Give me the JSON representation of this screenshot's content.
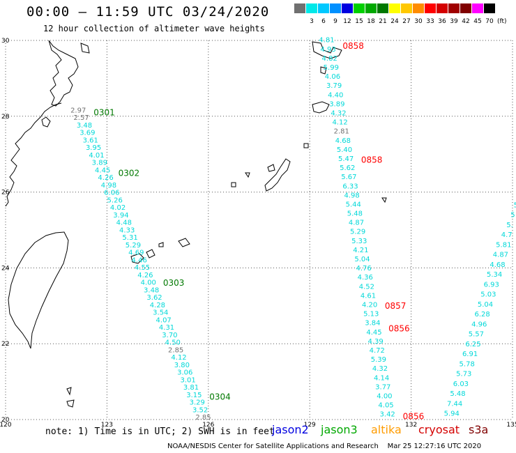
{
  "header": {
    "title": "00:00 – 11:59 UTC 03/24/2020",
    "subtitle": "12 hour collection of altimeter wave heights"
  },
  "legend": {
    "unit": "(ft)",
    "items": [
      {
        "label": "",
        "color": "#707070"
      },
      {
        "label": "3",
        "color": "#00e8e8"
      },
      {
        "label": "6",
        "color": "#00c8ff"
      },
      {
        "label": "9",
        "color": "#0090ff"
      },
      {
        "label": "12",
        "color": "#0000e0"
      },
      {
        "label": "15",
        "color": "#00d000"
      },
      {
        "label": "18",
        "color": "#00a800"
      },
      {
        "label": "21",
        "color": "#007800"
      },
      {
        "label": "24",
        "color": "#ffff00"
      },
      {
        "label": "27",
        "color": "#ffc800"
      },
      {
        "label": "30",
        "color": "#ff8c00"
      },
      {
        "label": "33",
        "color": "#ff0000"
      },
      {
        "label": "36",
        "color": "#d40000"
      },
      {
        "label": "39",
        "color": "#a00000"
      },
      {
        "label": "42",
        "color": "#800000"
      },
      {
        "label": "45",
        "color": "#ff00ff"
      },
      {
        "label": "70",
        "color": "#000000"
      }
    ]
  },
  "axes": {
    "lon_ticks": [
      "120",
      "123",
      "126",
      "129",
      "132",
      "135"
    ],
    "lat_ticks": [
      "30",
      "28",
      "26",
      "24",
      "22",
      "20"
    ],
    "lon_range": [
      120,
      135
    ],
    "lat_range": [
      20,
      30
    ]
  },
  "map_data": {
    "grid": "dotted every 3° lon / 2° lat",
    "tracks": [
      {
        "satellite": "jason3",
        "color": "#00d8d8",
        "times": [
          {
            "label": "0301",
            "lat": 28.1,
            "color": "#007800"
          },
          {
            "label": "0302",
            "lat": 26.5,
            "color": "#007800"
          },
          {
            "label": "0303",
            "lat": 23.6,
            "color": "#007800"
          },
          {
            "label": "0304",
            "lat": 20.6,
            "color": "#007800"
          }
        ],
        "start": {
          "lon": 122.15,
          "lat": 28.1
        },
        "end": {
          "lon": 125.85,
          "lat": 20.0
        },
        "values": [
          "2.97",
          "2.57",
          "3.48",
          "3.69",
          "3.61",
          "3.95",
          "4.01",
          "3.89",
          "4.45",
          "4.26",
          "4.98",
          "6.06",
          "5.26",
          "4.02",
          "3.94",
          "4.48",
          "4.33",
          "5.31",
          "5.29",
          "4.69",
          "4.46",
          "4.55",
          "4.26",
          "4.00",
          "3.48",
          "3.62",
          "4.28",
          "3.54",
          "4.07",
          "4.31",
          "3.70",
          "4.50",
          "2.85",
          "4.12",
          "3.80",
          "3.06",
          "3.01",
          "3.81",
          "3.15",
          "3.29",
          "3.52",
          "2.85"
        ],
        "value_colors": {
          "2.97": "#707070",
          "2.57": "#707070",
          "2.85": "#707070"
        }
      },
      {
        "satellite": "s3a",
        "color": "#00d8d8",
        "times": [
          {
            "label": "0858",
            "lat": 29.85,
            "color": "#ff0000"
          },
          {
            "label": "0858",
            "lat": 26.85,
            "color": "#ff0000"
          },
          {
            "label": "0857",
            "lat": 23.0,
            "color": "#ff0000"
          },
          {
            "label": "0856",
            "lat": 22.4,
            "color": "#ff0000"
          },
          {
            "label": "0856",
            "lat": 20.08,
            "color": "#ff0000"
          }
        ],
        "start": {
          "lon": 129.5,
          "lat": 29.95
        },
        "end": {
          "lon": 131.3,
          "lat": 20.08
        },
        "values": [
          "4.81",
          "4.93",
          "4.82",
          "5.99",
          "4.06",
          "3.79",
          "4.40",
          "3.89",
          "4.32",
          "4.12",
          "2.81",
          "4.68",
          "5.40",
          "5.47",
          "5.62",
          "5.67",
          "6.33",
          "4.98",
          "5.44",
          "5.48",
          "4.87",
          "5.29",
          "5.33",
          "4.21",
          "5.04",
          "4.76",
          "4.36",
          "4.52",
          "4.61",
          "4.20",
          "5.13",
          "3.84",
          "4.45",
          "4.39",
          "4.72",
          "5.39",
          "4.32",
          "4.14",
          "3.77",
          "4.00",
          "4.05",
          "3.42"
        ],
        "value_colors": {
          "2.81": "#707070"
        }
      },
      {
        "satellite": "cryosat",
        "color": "#00d8d8",
        "start": {
          "lon": 135.1,
          "lat": 25.6
        },
        "end": {
          "lon": 133.2,
          "lat": 20.1
        },
        "values": [
          "5",
          "5",
          "5.",
          "4.7",
          "5.81",
          "4.87",
          "4.68",
          "5.34",
          "6.93",
          "5.03",
          "5.04",
          "6.28",
          "4.96",
          "5.57",
          "6.25",
          "6.91",
          "5.78",
          "5.73",
          "6.03",
          "5.48",
          "7.44",
          "5.94"
        ],
        "value_colors": {}
      }
    ]
  },
  "footer": {
    "note": "note: 1) Time is in UTC; 2) SWH is in feet",
    "satellites": [
      {
        "name": "jason2",
        "color": "#0000e0"
      },
      {
        "name": "jason3",
        "color": "#00a800"
      },
      {
        "name": "altika",
        "color": "#ff9c00"
      },
      {
        "name": "cryosat",
        "color": "#d40000"
      },
      {
        "name": "s3a",
        "color": "#800000"
      }
    ],
    "credit": "NOAA/NESDIS Center for Satellite Applications and Research",
    "timestamp": "Mar 25 12:27:16 UTC 2020"
  }
}
